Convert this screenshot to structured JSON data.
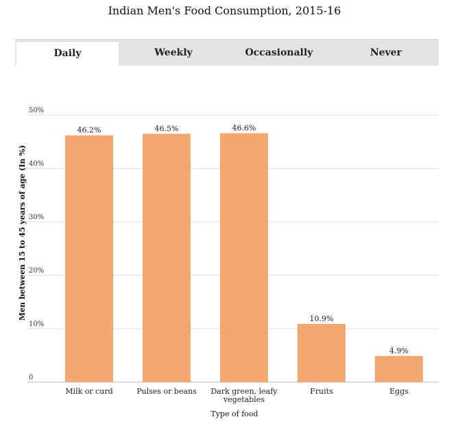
{
  "title": "Indian Men's Food Consumption, 2015-16",
  "tabs": [
    {
      "label": "Daily",
      "active": true
    },
    {
      "label": "Weekly",
      "active": false
    },
    {
      "label": "Occasionally",
      "active": false
    },
    {
      "label": "Never",
      "active": false
    }
  ],
  "colors": {
    "bar": "#f2a870",
    "grid": "#dddddd",
    "tabbar": "#e4e4e4"
  },
  "chart_data": {
    "type": "bar",
    "title": "Indian Men's Food Consumption, 2015-16",
    "xlabel": "Type of food",
    "ylabel": "Men between 15 to 45 years of age (In %)",
    "categories": [
      [
        "Milk or curd"
      ],
      [
        "Pulses or beans"
      ],
      [
        "Dark green, leafy",
        "vegetables"
      ],
      [
        "Fruits"
      ],
      [
        "Eggs"
      ]
    ],
    "values": [
      46.2,
      46.5,
      46.6,
      10.9,
      4.9
    ],
    "data_labels": [
      "46.2%",
      "46.5%",
      "46.6%",
      "10.9%",
      "4.9%"
    ],
    "ylim": [
      0,
      50
    ],
    "yticks": [
      0,
      10,
      20,
      30,
      40,
      50
    ],
    "ytick_labels": [
      "0",
      "10%",
      "20%",
      "30%",
      "40%",
      "50%"
    ],
    "grid": true,
    "legend": "none"
  }
}
